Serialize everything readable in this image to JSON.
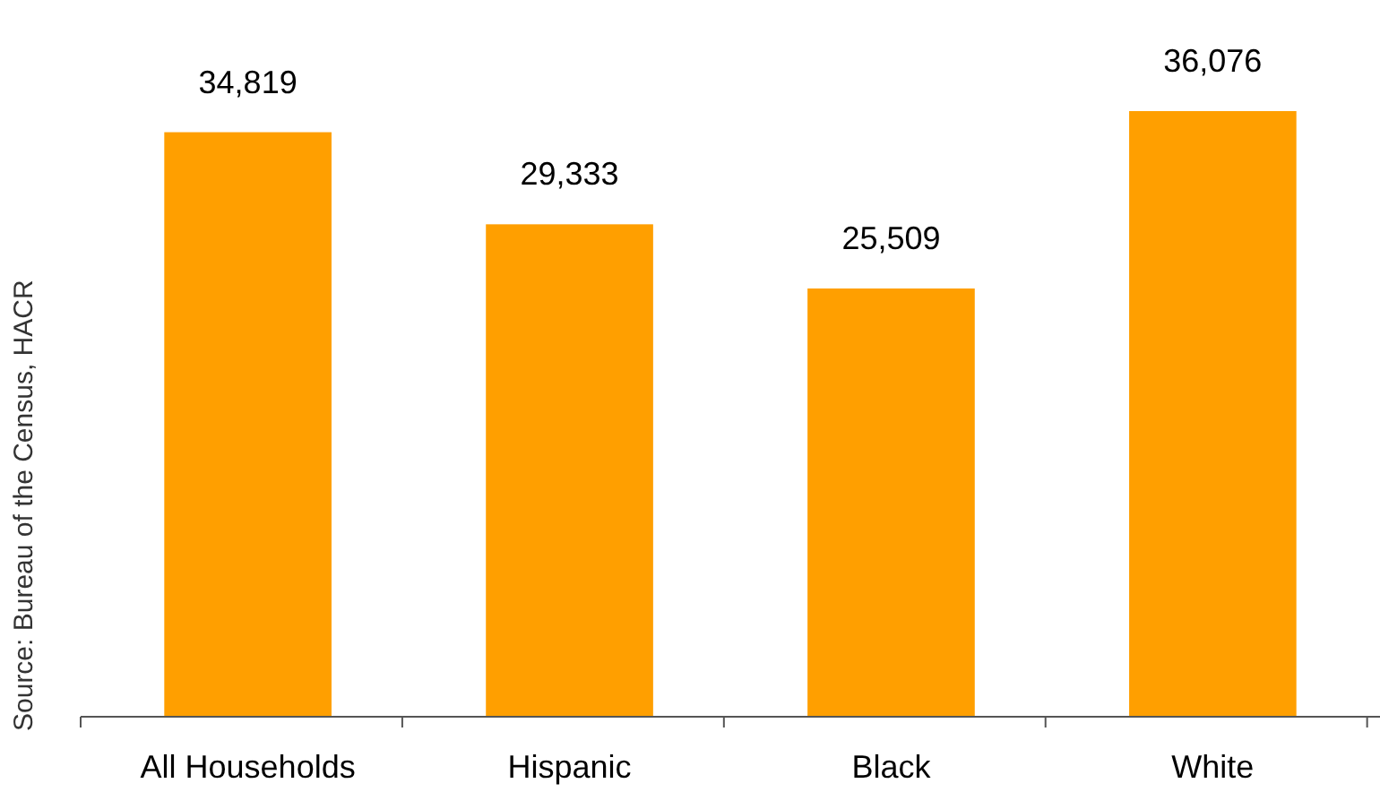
{
  "chart_data": {
    "type": "bar",
    "categories": [
      "All Households",
      "Hispanic",
      "Black",
      "White"
    ],
    "values": [
      34819,
      29333,
      25509,
      36076
    ],
    "value_labels": [
      "34,819",
      "29,333",
      "25,509",
      "36,076"
    ],
    "color": "#ff9f00",
    "annotations": [
      "Source: Bureau of the Census, HACR"
    ]
  }
}
